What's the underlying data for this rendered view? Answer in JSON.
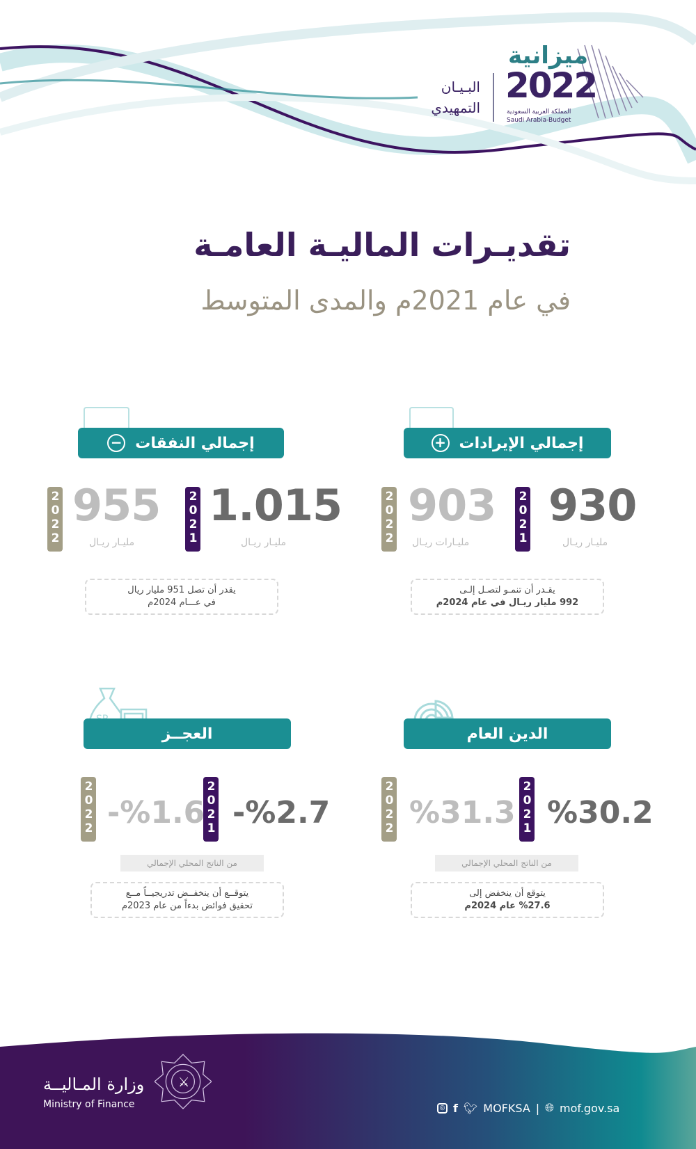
{
  "header": {
    "logo": {
      "arabic": "ميزانية",
      "year": "2022",
      "sub_ar": "المملكة العربية السعودية",
      "sub_en": "Saudi Arabia-Budget"
    },
    "statement_line1": "البـيـان",
    "statement_line2": "التمهيدي"
  },
  "title": "تقديـرات الماليـة العامـة",
  "subtitle": "في عام 2021م والمدى المتوسط",
  "colors": {
    "teal": "#1b8f93",
    "purple": "#3c1360",
    "beige": "#a39e86",
    "title": "#3a1e5a"
  },
  "cards": {
    "revenue": {
      "label": "إجمالي الإيرادات",
      "icon": "plus-circle-icon",
      "y2021_label": "2021",
      "y2021_value": "930",
      "y2021_unit": "مليـار ريـال",
      "y2022_label": "2022",
      "y2022_value": "903",
      "y2022_unit": "مليـارات ريـال",
      "note_line1": "يقـدر أن تنمـو لتصـل إلـى",
      "note_line2": "992 مليار ريـال في عام 2024م"
    },
    "expenses": {
      "label": "إجمالي النفقات",
      "icon": "minus-circle-icon",
      "y2021_label": "2021",
      "y2021_value": "1.015",
      "y2021_unit": "مليـار ريـال",
      "y2022_label": "2022",
      "y2022_value": "955",
      "y2022_unit": "مليـار ريـال",
      "note_line1": "يقدر أن تصل 951 مليار ريال",
      "note_line2": "في عـــام 2024م"
    },
    "debt": {
      "label": "الدين العام",
      "icon": "pie-chart-percent-icon",
      "y2021_label": "2021",
      "y2021_value": "%30.2",
      "y2022_label": "2022",
      "y2022_value": "%31.3",
      "gdp": "من الناتج المحلي الإجمالي",
      "note_line1": "يتوقع أن ينخفض إلى",
      "note_line2": "%27.6 عام 2024م"
    },
    "deficit": {
      "label": "العجــز",
      "icon": "money-bag-calculator-icon",
      "y2021_label": "2021",
      "y2021_value": "-%2.7",
      "y2022_label": "2022",
      "y2022_value": "-%1.6",
      "gdp": "من الناتج المحلي الإجمالي",
      "note_line1": "يتوقــع أن ينخفــض تدريجيــاً مــع",
      "note_line2": "تحقيق فوائض بدءاً من عام 2023م"
    }
  },
  "footer": {
    "ministry_ar": "وزارة المـاليــة",
    "ministry_en": "Ministry of Finance",
    "handle": "MOFKSA",
    "separator": "|",
    "website": "mof.gov.sa"
  }
}
